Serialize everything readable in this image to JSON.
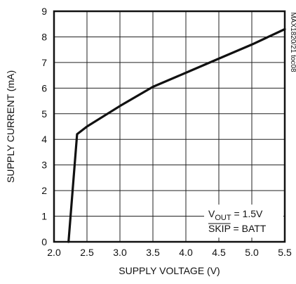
{
  "chart_data": {
    "type": "line",
    "xlabel": "SUPPLY VOLTAGE (V)",
    "ylabel": "SUPPLY CURRENT (mA)",
    "xlim": [
      2.0,
      5.5
    ],
    "ylim": [
      0,
      9
    ],
    "xticks": [
      "2.0",
      "2.5",
      "3.0",
      "3.5",
      "4.0",
      "4.5",
      "5.0",
      "5.5"
    ],
    "yticks": [
      "0",
      "1",
      "2",
      "3",
      "4",
      "5",
      "6",
      "7",
      "8",
      "9"
    ],
    "grid": true,
    "series": [
      {
        "x": [
          2.22,
          2.35,
          2.5,
          3.0,
          3.5,
          4.0,
          4.5,
          5.0,
          5.5
        ],
        "y": [
          0.0,
          4.2,
          4.5,
          5.3,
          6.05,
          6.6,
          7.15,
          7.7,
          8.3
        ]
      }
    ],
    "annotation": {
      "line1_main": "V",
      "line1_sub": "OUT",
      "line1_rest": " = 1.5V",
      "line2_over": "SKIP",
      "line2_rest": " = BATT"
    },
    "figure_code": "MAX1820/21 toc08"
  }
}
